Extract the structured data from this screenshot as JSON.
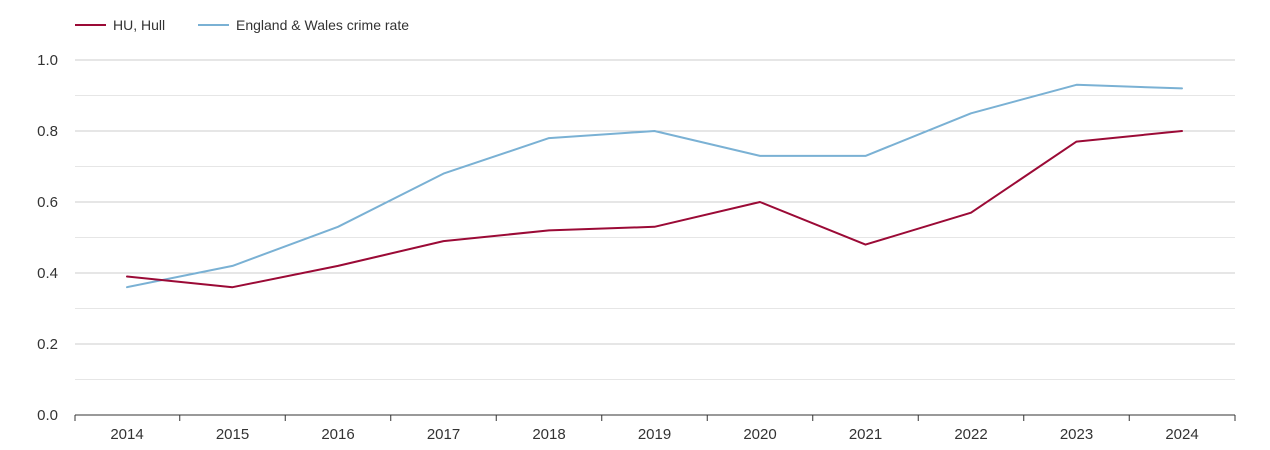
{
  "chart_data": {
    "type": "line",
    "title": "",
    "xlabel": "",
    "ylabel": "",
    "x": [
      "2014",
      "2015",
      "2016",
      "2017",
      "2018",
      "2019",
      "2020",
      "2021",
      "2022",
      "2023",
      "2024"
    ],
    "ylim": [
      0,
      1.0
    ],
    "yticks": [
      "0.0",
      "0.2",
      "0.4",
      "0.6",
      "0.8",
      "1.0"
    ],
    "grid": true,
    "legend_position": "top-left",
    "series": [
      {
        "name": "HU, Hull",
        "color": "#9b0a36",
        "values": [
          0.39,
          0.36,
          0.42,
          0.49,
          0.52,
          0.53,
          0.6,
          0.48,
          0.57,
          0.77,
          0.8
        ]
      },
      {
        "name": "England & Wales crime rate",
        "color": "#7ab1d4",
        "values": [
          0.36,
          0.42,
          0.53,
          0.68,
          0.78,
          0.8,
          0.73,
          0.73,
          0.85,
          0.93,
          0.92
        ]
      }
    ]
  }
}
